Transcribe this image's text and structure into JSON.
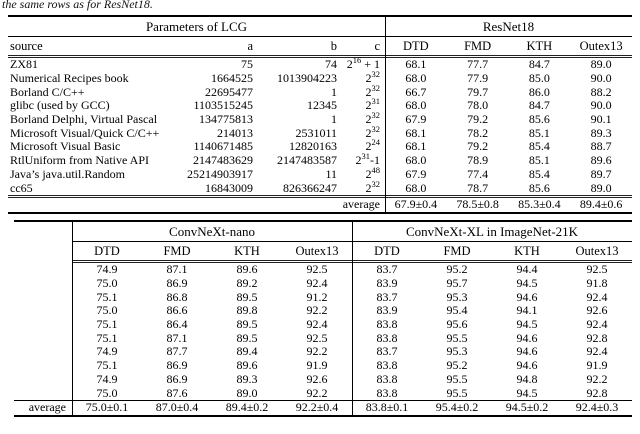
{
  "caption_fragment": "the same rows as for ResNet18.",
  "table1": {
    "group_headers": {
      "left": "Parameters of LCG",
      "right": "ResNet18"
    },
    "col_headers": {
      "source": "source",
      "a": "a",
      "b": "b",
      "c": "c",
      "results": [
        "DTD",
        "FMD",
        "KTH",
        "Outex13"
      ]
    },
    "rows": [
      {
        "source": "ZX81",
        "a": "75",
        "b": "74",
        "c": {
          "base": "2",
          "exp": "16",
          "suffix": " + 1"
        },
        "results": [
          "68.1",
          "77.7",
          "84.7",
          "89.0"
        ]
      },
      {
        "source": "Numerical Recipes book",
        "a": "1664525",
        "b": "1013904223",
        "c": {
          "base": "2",
          "exp": "32",
          "suffix": ""
        },
        "results": [
          "68.0",
          "77.9",
          "85.0",
          "90.0"
        ]
      },
      {
        "source": "Borland C/C++",
        "a": "22695477",
        "b": "1",
        "c": {
          "base": "2",
          "exp": "32",
          "suffix": ""
        },
        "results": [
          "66.7",
          "79.7",
          "86.0",
          "88.2"
        ]
      },
      {
        "source": "glibc (used by GCC)",
        "a": "1103515245",
        "b": "12345",
        "c": {
          "base": "2",
          "exp": "31",
          "suffix": ""
        },
        "results": [
          "68.0",
          "78.0",
          "84.7",
          "90.0"
        ]
      },
      {
        "source": "Borland Delphi, Virtual Pascal",
        "a": "134775813",
        "b": "1",
        "c": {
          "base": "2",
          "exp": "32",
          "suffix": ""
        },
        "results": [
          "67.9",
          "79.2",
          "85.6",
          "90.1"
        ]
      },
      {
        "source": "Microsoft Visual/Quick C/C++",
        "a": "214013",
        "b": "2531011",
        "c": {
          "base": "2",
          "exp": "32",
          "suffix": ""
        },
        "results": [
          "68.1",
          "78.2",
          "85.1",
          "89.3"
        ]
      },
      {
        "source": "Microsoft Visual Basic",
        "a": "1140671485",
        "b": "12820163",
        "c": {
          "base": "2",
          "exp": "24",
          "suffix": ""
        },
        "results": [
          "68.1",
          "79.2",
          "85.4",
          "88.7"
        ]
      },
      {
        "source": "RtlUniform from Native API",
        "a": "2147483629",
        "b": "2147483587",
        "c": {
          "base": "2",
          "exp": "31",
          "suffix": "-1"
        },
        "results": [
          "68.0",
          "78.9",
          "85.1",
          "89.6"
        ]
      },
      {
        "source": "Java’s java.util.Random",
        "a": "25214903917",
        "b": "11",
        "c": {
          "base": "2",
          "exp": "48",
          "suffix": ""
        },
        "results": [
          "67.9",
          "77.4",
          "85.4",
          "89.7"
        ]
      },
      {
        "source": "cc65",
        "a": "16843009",
        "b": "826366247",
        "c": {
          "base": "2",
          "exp": "32",
          "suffix": ""
        },
        "results": [
          "68.0",
          "78.7",
          "85.6",
          "89.0"
        ]
      }
    ],
    "average_label": "average",
    "average": [
      "67.9±0.4",
      "78.5±0.8",
      "85.3±0.4",
      "89.4±0.6"
    ]
  },
  "table2": {
    "group_headers": {
      "left": "ConvNeXt-nano",
      "right": "ConvNeXt-XL in ImageNet-21K"
    },
    "col_headers": {
      "nano": [
        "DTD",
        "FMD",
        "KTH",
        "Outex13"
      ],
      "xl": [
        "DTD",
        "FMD",
        "KTH",
        "Outex13"
      ]
    },
    "rows": [
      {
        "nano": [
          "74.9",
          "87.1",
          "89.6",
          "92.5"
        ],
        "xl": [
          "83.7",
          "95.2",
          "94.4",
          "92.5"
        ]
      },
      {
        "nano": [
          "75.0",
          "86.9",
          "89.2",
          "92.4"
        ],
        "xl": [
          "83.9",
          "95.7",
          "94.5",
          "91.8"
        ]
      },
      {
        "nano": [
          "75.1",
          "86.8",
          "89.5",
          "91.2"
        ],
        "xl": [
          "83.7",
          "95.3",
          "94.6",
          "92.4"
        ]
      },
      {
        "nano": [
          "75.0",
          "86.6",
          "89.8",
          "92.2"
        ],
        "xl": [
          "83.9",
          "95.4",
          "94.1",
          "92.6"
        ]
      },
      {
        "nano": [
          "75.1",
          "86.4",
          "89.5",
          "92.4"
        ],
        "xl": [
          "83.8",
          "95.6",
          "94.5",
          "92.4"
        ]
      },
      {
        "nano": [
          "75.1",
          "87.1",
          "89.5",
          "92.5"
        ],
        "xl": [
          "83.8",
          "95.5",
          "94.6",
          "92.8"
        ]
      },
      {
        "nano": [
          "74.9",
          "87.7",
          "89.4",
          "92.2"
        ],
        "xl": [
          "83.7",
          "95.3",
          "94.6",
          "92.4"
        ]
      },
      {
        "nano": [
          "75.1",
          "86.9",
          "89.6",
          "91.9"
        ],
        "xl": [
          "83.8",
          "95.2",
          "94.6",
          "91.9"
        ]
      },
      {
        "nano": [
          "74.9",
          "86.9",
          "89.3",
          "92.6"
        ],
        "xl": [
          "83.8",
          "95.5",
          "94.8",
          "92.2"
        ]
      },
      {
        "nano": [
          "75.0",
          "87.6",
          "89.0",
          "92.2"
        ],
        "xl": [
          "83.8",
          "95.5",
          "94.5",
          "92.8"
        ]
      }
    ],
    "average_label": "average",
    "average_nano": [
      "75.0±0.1",
      "87.0±0.4",
      "89.4±0.2",
      "92.2±0.4"
    ],
    "average_xl": [
      "83.8±0.1",
      "95.4±0.2",
      "94.5±0.2",
      "92.4±0.3"
    ]
  }
}
